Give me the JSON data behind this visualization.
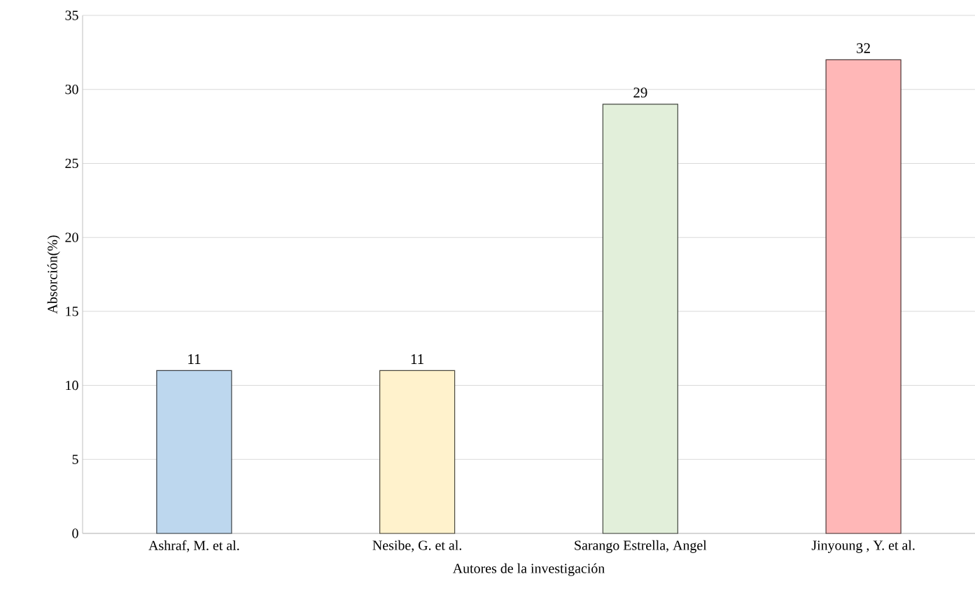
{
  "chart_data": {
    "type": "bar",
    "xlabel": "Autores de la investigación",
    "ylabel": "Absorción(%)",
    "categories": [
      "Ashraf, M. et al.",
      "Nesibe, G. et al.",
      "Sarango Estrella, Angel",
      "Jinyoung , Y. et al."
    ],
    "values": [
      11,
      11,
      29,
      32
    ],
    "colors": [
      "#bdd7ee",
      "#fff2cc",
      "#e2efda",
      "#ffb7b7"
    ],
    "ylim": [
      0,
      35
    ],
    "yticks": [
      0,
      5,
      10,
      15,
      20,
      25,
      30,
      35
    ],
    "grid": "y",
    "data_labels": true
  }
}
